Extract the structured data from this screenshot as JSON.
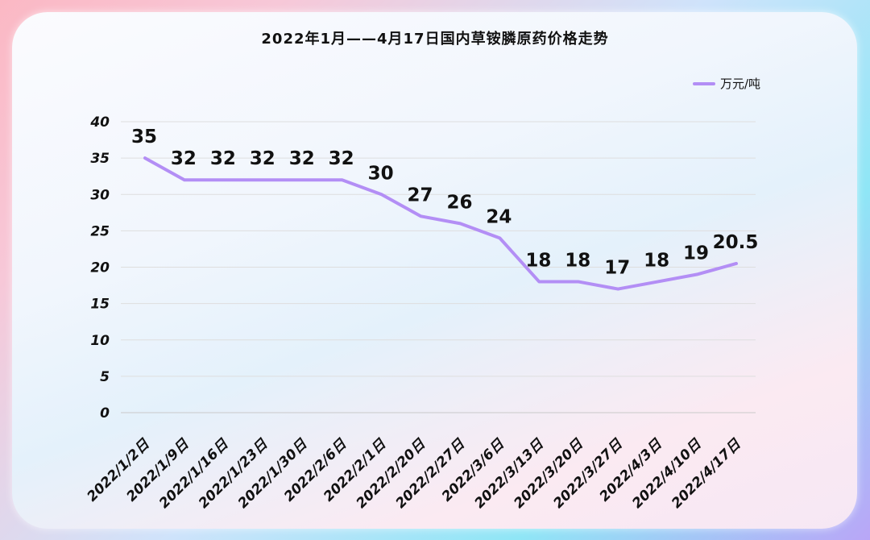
{
  "chart_data": {
    "type": "line",
    "title": "2022年1月——4月17日国内草铵膦原药价格走势",
    "categories": [
      "2022/1/2日",
      "2022/1/9日",
      "2022/1/16日",
      "2022/1/23日",
      "2022/1/30日",
      "2022/2/6日",
      "2022/2/1日",
      "2022/2/20日",
      "2022/2/27日",
      "2022/3/6日",
      "2022/3/13日",
      "2022/3/20日",
      "2022/3/27日",
      "2022/4/3日",
      "2022/4/10日",
      "2022/4/17日"
    ],
    "series": [
      {
        "name": "万元/吨",
        "values": [
          35,
          32,
          32,
          32,
          32,
          32,
          30,
          27,
          26,
          24,
          18,
          18,
          17,
          18,
          19,
          20.5
        ],
        "color": "#b38ef5"
      }
    ],
    "data_labels": [
      "35",
      "32",
      "32",
      "32",
      "32",
      "32",
      "30",
      "27",
      "26",
      "24",
      "18",
      "18",
      "17",
      "18",
      "19",
      "20.5"
    ],
    "yticks": [
      "0",
      "5",
      "10",
      "15",
      "20",
      "25",
      "30",
      "35",
      "40"
    ],
    "ylim": [
      0,
      40
    ],
    "grid": true,
    "legend_position": "top-right"
  }
}
